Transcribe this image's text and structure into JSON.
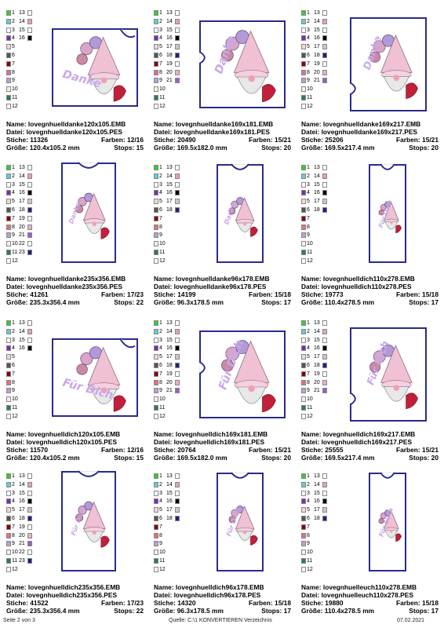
{
  "colors": {
    "1": "#33cc33",
    "2": "#66cccc",
    "3": "#ffffff",
    "4": "#7b2ab8",
    "5": "#f5d6d6",
    "6": "#555555",
    "7": "#8b0000",
    "8": "#e07080",
    "9": "#b8a0d8",
    "10": "#f8f0f0",
    "11": "#2a7a6a",
    "12": "#ffffff",
    "13": "#ffffff",
    "14": "#e8a0b0",
    "15": "#ffffff",
    "16": "#000000",
    "17": "#d8c0d0",
    "18": "#202080",
    "19": "#ffffff",
    "20": "#e8b0c8",
    "21": "#9b59d0",
    "22": "#ffffff",
    "23": "#1a237e"
  },
  "palettes": {
    "a": [
      [
        1,
        13
      ],
      [
        2,
        14
      ],
      [
        3,
        15
      ],
      [
        4,
        16
      ],
      [
        5,
        null
      ],
      [
        6,
        null
      ],
      [
        7,
        null
      ],
      [
        8,
        null
      ],
      [
        9,
        null
      ],
      [
        10,
        null
      ],
      [
        11,
        null
      ],
      [
        12,
        null
      ]
    ],
    "b": [
      [
        1,
        13
      ],
      [
        2,
        14
      ],
      [
        3,
        15
      ],
      [
        4,
        16
      ],
      [
        5,
        17
      ],
      [
        6,
        18
      ],
      [
        7,
        19
      ],
      [
        8,
        20
      ],
      [
        9,
        21
      ],
      [
        10,
        null
      ],
      [
        11,
        null
      ],
      [
        12,
        null
      ]
    ],
    "c": [
      [
        1,
        13
      ],
      [
        2,
        14
      ],
      [
        3,
        15
      ],
      [
        4,
        16
      ],
      [
        5,
        17
      ],
      [
        6,
        18
      ],
      [
        7,
        19
      ],
      [
        8,
        20
      ],
      [
        9,
        21
      ],
      [
        10,
        22
      ],
      [
        11,
        23
      ],
      [
        12,
        null
      ]
    ],
    "d": [
      [
        1,
        13
      ],
      [
        2,
        14
      ],
      [
        3,
        15
      ],
      [
        4,
        16
      ],
      [
        5,
        17
      ],
      [
        6,
        18
      ],
      [
        7,
        null
      ],
      [
        8,
        null
      ],
      [
        9,
        null
      ],
      [
        10,
        null
      ],
      [
        11,
        null
      ],
      [
        12,
        null
      ]
    ]
  },
  "labels": {
    "name": "Name:",
    "datei": "Datei:",
    "stiche": "Stiche:",
    "farben": "Farben:",
    "groesse": "Größe:",
    "stops": "Stops:"
  },
  "cells": [
    {
      "name": "lovegnhuelldanke120x105.EMB",
      "datei": "lovegnhuelldanke120x105.PES",
      "stiche": "11326",
      "farben": "12/16",
      "groesse": "120.4x105.2 mm",
      "stops": "15",
      "palette": "a",
      "text": "Danke",
      "shape": "wide"
    },
    {
      "name": "lovegnhuelldanke169x181.EMB",
      "datei": "lovegnhuelldanke169x181.PES",
      "stiche": "20490",
      "farben": "15/21",
      "groesse": "169.5x182.0 mm",
      "stops": "20",
      "palette": "b",
      "text": "Danke",
      "shape": "square"
    },
    {
      "name": "lovegnhuelldanke169x217.EMB",
      "datei": "lovegnhuelldanke169x217.PES",
      "stiche": "25206",
      "farben": "15/21",
      "groesse": "169.5x217.4 mm",
      "stops": "20",
      "palette": "b",
      "text": "Danke",
      "shape": "tall"
    },
    {
      "name": "lovegnhuelldanke235x356.EMB",
      "datei": "lovegnhuelldanke235x356.PES",
      "stiche": "41261",
      "farben": "17/23",
      "groesse": "235.3x356.4 mm",
      "stops": "22",
      "palette": "c",
      "text": "Danke",
      "shape": "portrait"
    },
    {
      "name": "lovegnhuelldanke96x178.EMB",
      "datei": "lovegnhuelldanke96x178.PES",
      "stiche": "14199",
      "farben": "15/18",
      "groesse": "96.3x178.5 mm",
      "stops": "17",
      "palette": "d",
      "text": "Danke",
      "shape": "narrow"
    },
    {
      "name": "lovegnhuelldich110x278.EMB",
      "datei": "lovegnhuelldich110x278.PES",
      "stiche": "19773",
      "farben": "15/18",
      "groesse": "110.4x278.5 mm",
      "stops": "17",
      "palette": "d",
      "text": "Für Dich",
      "shape": "slim"
    },
    {
      "name": "lovegnhuelldich120x105.EMB",
      "datei": "lovegnhuelldich120x105.PES",
      "stiche": "11570",
      "farben": "12/16",
      "groesse": "120.4x105.2 mm",
      "stops": "15",
      "palette": "a",
      "text": "Für Dich",
      "shape": "wide"
    },
    {
      "name": "lovegnhuelldich169x181.EMB",
      "datei": "lovegnhuelldich169x181.PES",
      "stiche": "20764",
      "farben": "15/21",
      "groesse": "169.5x182.0 mm",
      "stops": "20",
      "palette": "b",
      "text": "Für Dich",
      "shape": "square"
    },
    {
      "name": "lovegnhuelldich169x217.EMB",
      "datei": "lovegnhuelldich169x217.PES",
      "stiche": "25555",
      "farben": "15/21",
      "groesse": "169.5x217.4 mm",
      "stops": "20",
      "palette": "b",
      "text": "Für Dich",
      "shape": "tall"
    },
    {
      "name": "lovegnhuelldich235x356.EMB",
      "datei": "lovegnhuelldich235x356.PES",
      "stiche": "41522",
      "farben": "17/23",
      "groesse": "235.3x356.4 mm",
      "stops": "22",
      "palette": "c",
      "text": "Für Dich",
      "shape": "portrait"
    },
    {
      "name": "lovegnhuelldich96x178.EMB",
      "datei": "lovegnhuelldich96x178.PES",
      "stiche": "14320",
      "farben": "15/18",
      "groesse": "96.3x178.5 mm",
      "stops": "17",
      "palette": "d",
      "text": "Für Dich",
      "shape": "narrow"
    },
    {
      "name": "lovegnhuelleuch110x278.EMB",
      "datei": "lovegnhuelleuch110x278.PES",
      "stiche": "19880",
      "farben": "15/18",
      "groesse": "110.4x278.5 mm",
      "stops": "17",
      "palette": "d",
      "text": "Für Euch",
      "shape": "slim"
    }
  ],
  "footer": {
    "page": "Seite 2 von 3",
    "source": "Quelle: C:\\1 KONVERTIEREN Verzeichnis",
    "date": "07.02.2021"
  }
}
